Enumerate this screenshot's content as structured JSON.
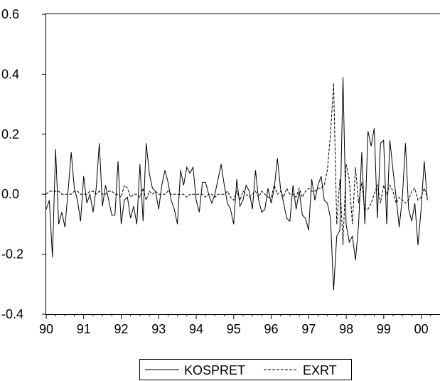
{
  "chart_data": {
    "type": "line",
    "title": "",
    "xlabel": "",
    "ylabel": "",
    "xlim": [
      1990.0,
      2000.5
    ],
    "ylim": [
      -0.4,
      0.6
    ],
    "xticks": [
      1990,
      1991,
      1992,
      1993,
      1994,
      1995,
      1996,
      1997,
      1998,
      1999,
      2000
    ],
    "xtick_labels": [
      "90",
      "91",
      "92",
      "93",
      "94",
      "95",
      "96",
      "97",
      "98",
      "99",
      "00"
    ],
    "yticks": [
      -0.4,
      -0.2,
      0.0,
      0.2,
      0.4,
      0.6
    ],
    "ytick_labels": [
      "-0.4",
      "-0.2",
      "0.0",
      "0.2",
      "0.4",
      "0.6"
    ],
    "grid": false,
    "legend_position": "bottom-center",
    "x_start": 1990.0,
    "x_step": 0.0833,
    "series": [
      {
        "name": "KOSPRET",
        "style": "solid",
        "color": "#000000",
        "values": [
          -0.05,
          -0.02,
          -0.21,
          0.15,
          -0.1,
          -0.06,
          -0.11,
          0.01,
          0.14,
          0.02,
          -0.02,
          -0.09,
          0.06,
          -0.03,
          0.0,
          -0.06,
          0.02,
          0.17,
          -0.04,
          0.03,
          -0.02,
          -0.07,
          -0.07,
          0.11,
          -0.1,
          -0.02,
          -0.01,
          -0.08,
          -0.04,
          -0.1,
          0.1,
          -0.09,
          0.17,
          0.07,
          0.02,
          0.01,
          -0.05,
          0.03,
          0.08,
          0.04,
          -0.02,
          -0.05,
          -0.1,
          0.08,
          0.03,
          0.09,
          0.07,
          0.09,
          -0.02,
          -0.06,
          0.04,
          0.04,
          0.0,
          -0.03,
          0.0,
          0.05,
          0.1,
          0.03,
          -0.03,
          -0.05,
          -0.1,
          0.05,
          -0.04,
          -0.02,
          0.03,
          0.01,
          -0.05,
          0.08,
          -0.02,
          -0.06,
          -0.05,
          0.02,
          -0.03,
          0.02,
          0.12,
          0.02,
          -0.03,
          -0.08,
          -0.09,
          0.03,
          -0.05,
          0.01,
          -0.07,
          -0.08,
          -0.12,
          0.05,
          -0.02,
          0.03,
          0.06,
          -0.02,
          -0.03,
          -0.08,
          -0.32,
          -0.14,
          -0.12,
          0.39,
          -0.1,
          -0.16,
          -0.14,
          -0.22,
          -0.1,
          0.14,
          -0.1,
          0.21,
          0.16,
          0.22,
          -0.08,
          0.17,
          0.18,
          -0.1,
          0.18,
          0.08,
          -0.01,
          -0.11,
          -0.01,
          0.17,
          -0.05,
          -0.09,
          -0.03,
          -0.17,
          -0.05,
          0.11,
          -0.02
        ]
      },
      {
        "name": "EXRT",
        "style": "dashed",
        "color": "#000000",
        "values": [
          0.0,
          0.01,
          0.01,
          0.01,
          0.01,
          0.0,
          0.0,
          0.0,
          0.0,
          0.01,
          0.01,
          0.0,
          0.0,
          0.0,
          0.01,
          0.01,
          0.0,
          0.01,
          0.0,
          0.0,
          0.01,
          0.01,
          0.0,
          0.0,
          -0.01,
          0.03,
          0.02,
          -0.01,
          0.0,
          0.0,
          -0.01,
          0.02,
          -0.02,
          0.01,
          0.0,
          0.01,
          0.0,
          0.0,
          0.0,
          0.01,
          0.0,
          0.0,
          0.0,
          0.0,
          0.0,
          -0.01,
          0.0,
          0.0,
          0.0,
          0.0,
          0.0,
          -0.01,
          0.0,
          0.0,
          -0.01,
          0.0,
          0.0,
          0.0,
          0.01,
          -0.01,
          -0.02,
          0.01,
          -0.02,
          0.01,
          0.0,
          -0.01,
          0.0,
          0.01,
          -0.01,
          0.01,
          0.0,
          -0.01,
          -0.01,
          0.03,
          0.0,
          0.01,
          -0.01,
          0.02,
          0.0,
          0.0,
          -0.01,
          0.02,
          -0.01,
          0.01,
          0.02,
          0.01,
          0.01,
          0.02,
          0.02,
          0.03,
          0.08,
          0.2,
          0.37,
          -0.1,
          0.05,
          -0.17,
          0.1,
          0.05,
          -0.1,
          0.09,
          -0.03,
          0.04,
          -0.05,
          -0.05,
          -0.03,
          0.0,
          0.03,
          -0.03,
          0.03,
          0.0,
          0.03,
          0.01,
          -0.03,
          -0.01,
          -0.02,
          -0.03,
          -0.02,
          0.01,
          0.02,
          -0.02,
          -0.01,
          0.02,
          -0.01
        ]
      }
    ]
  }
}
